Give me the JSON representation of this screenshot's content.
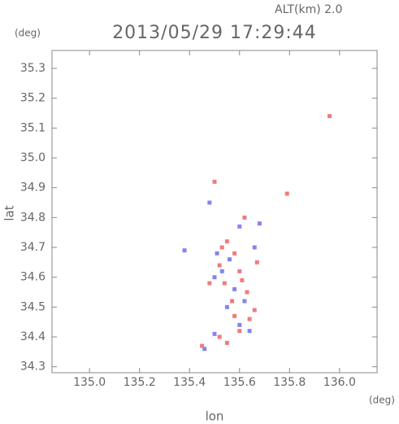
{
  "chart_data": {
    "type": "scatter",
    "title": "2013/05/29 17:29:44",
    "subtitle": "ALT(km) 2.0",
    "ylabel": "lat",
    "yunit": "(deg)",
    "xlabel": "lon",
    "xunit": "(deg)",
    "xlim": [
      134.85,
      136.15
    ],
    "ylim": [
      34.28,
      35.36
    ],
    "xticks": [
      {
        "value": 135.0,
        "label": "135.0"
      },
      135.2,
      135.4,
      135.6,
      135.8,
      {
        "value": 136.0,
        "label": "136.0"
      }
    ],
    "yticks": [
      34.3,
      34.4,
      34.5,
      34.6,
      34.7,
      34.8,
      34.9,
      {
        "value": 35.0,
        "label": "35.0"
      },
      35.1,
      35.2,
      35.3
    ],
    "series": [
      {
        "color": "#f07c7c",
        "x": [
          135.96,
          135.5,
          135.62,
          135.79,
          135.55,
          135.58,
          135.52,
          135.6,
          135.54,
          135.63,
          135.57,
          135.58,
          135.64,
          135.66,
          135.52,
          135.45,
          135.55,
          135.6,
          135.48,
          135.67,
          135.53,
          135.61
        ],
        "values": [
          35.14,
          34.92,
          34.8,
          34.88,
          34.72,
          34.68,
          34.64,
          34.62,
          34.58,
          34.55,
          34.52,
          34.47,
          34.46,
          34.49,
          34.4,
          34.37,
          34.38,
          34.42,
          34.58,
          34.65,
          34.7,
          34.59
        ]
      },
      {
        "color": "#8484f0",
        "x": [
          135.48,
          135.6,
          135.68,
          135.51,
          135.56,
          135.66,
          135.38,
          135.5,
          135.58,
          135.62,
          135.55,
          135.6,
          135.5,
          135.46,
          135.64,
          135.53
        ],
        "values": [
          34.85,
          34.77,
          34.78,
          34.68,
          34.66,
          34.7,
          34.69,
          34.6,
          34.56,
          34.52,
          34.5,
          34.44,
          34.41,
          34.36,
          34.42,
          34.62
        ]
      }
    ]
  }
}
